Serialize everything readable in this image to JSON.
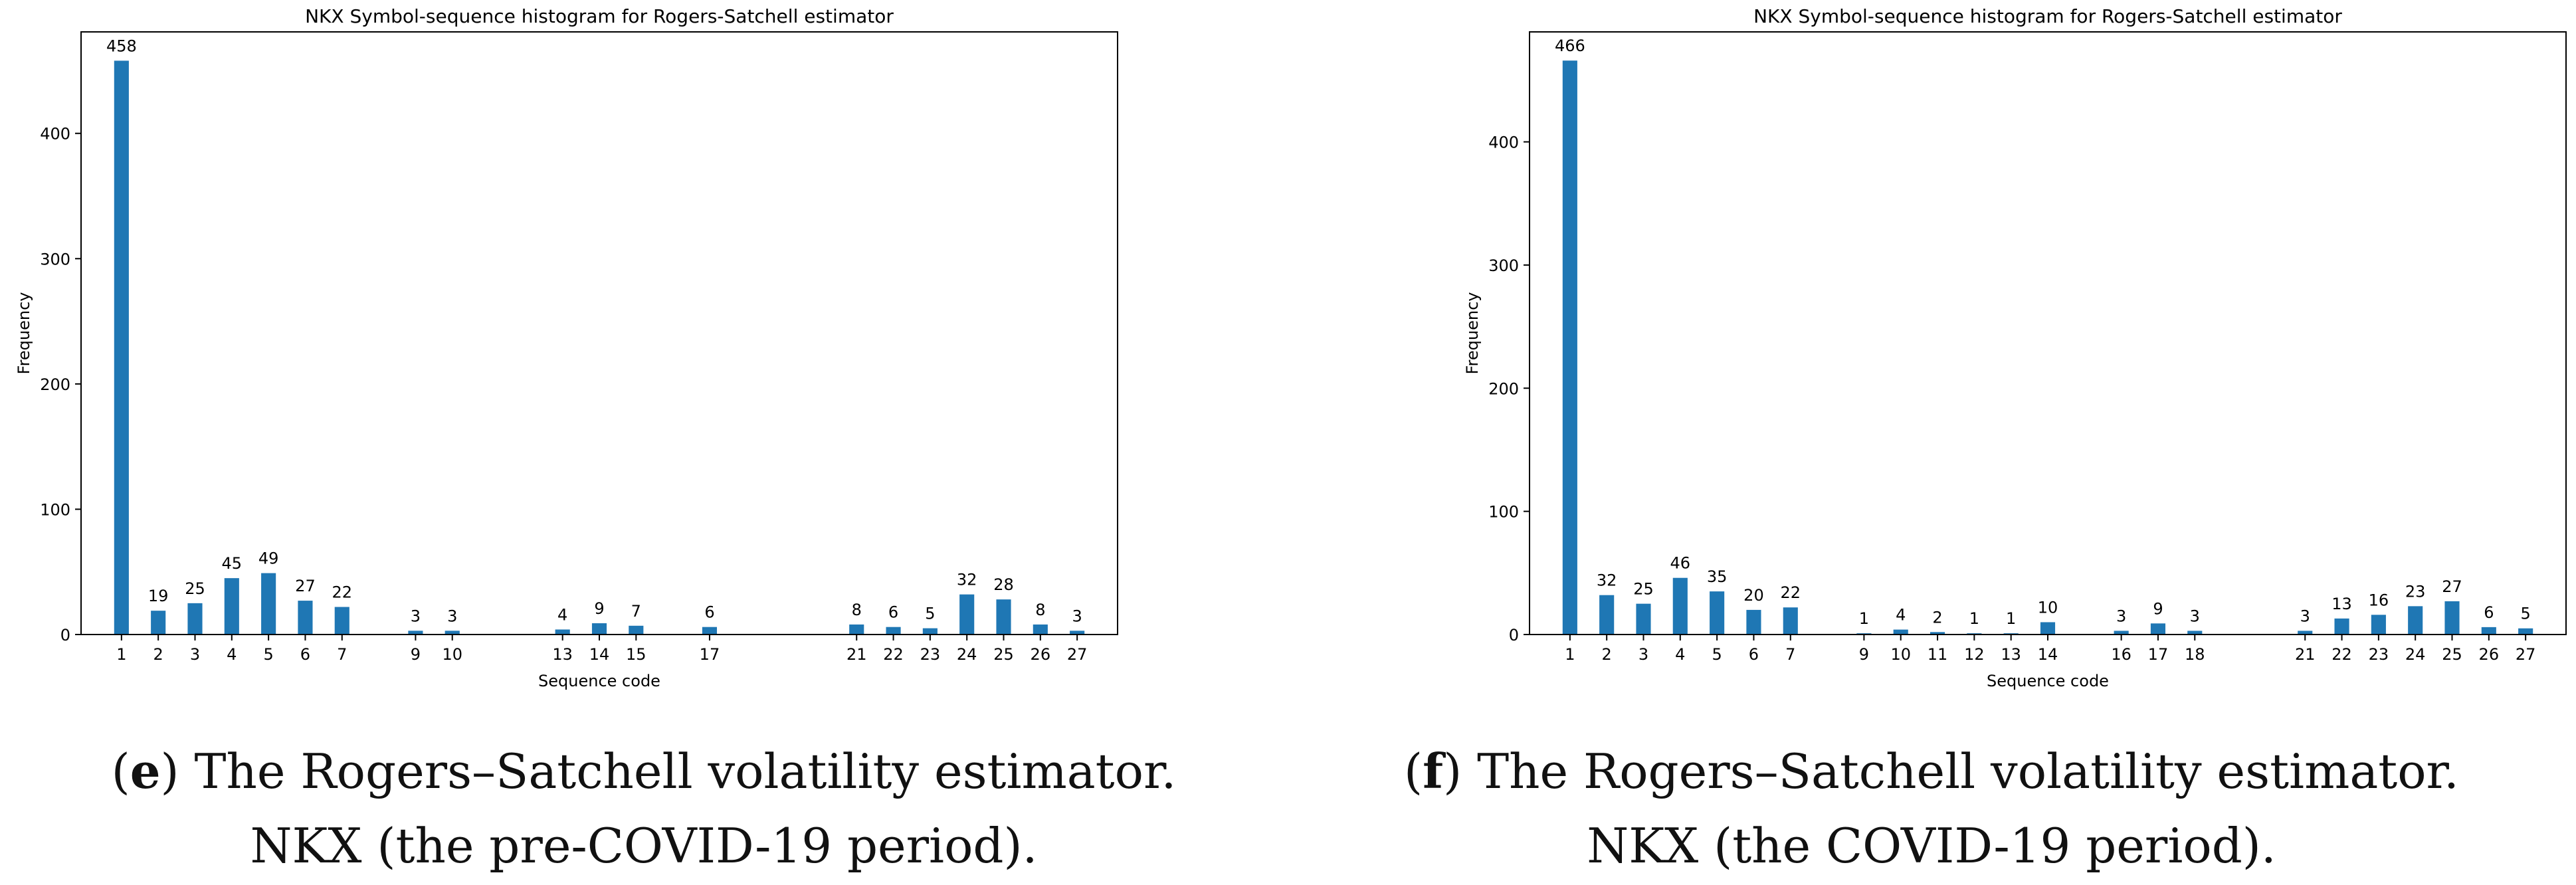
{
  "panels": [
    {
      "id": "e",
      "caption_label": "e",
      "caption_line1": "The Rogers–Satchell volatility estimator.",
      "caption_line2": "NKX (the pre-COVID-19 period)."
    },
    {
      "id": "f",
      "caption_label": "f",
      "caption_line1": "The Rogers–Satchell volatility estimator.",
      "caption_line2": "NKX (the COVID-19 period)."
    }
  ],
  "chart_data": [
    {
      "type": "bar",
      "title": "NKX Symbol-sequence histogram for Rogers-Satchell estimator",
      "xlabel": "Sequence code",
      "ylabel": "Frequency",
      "x": [
        1,
        2,
        3,
        4,
        5,
        6,
        7,
        9,
        10,
        13,
        14,
        15,
        17,
        21,
        22,
        23,
        24,
        25,
        26,
        27
      ],
      "values": [
        458,
        19,
        25,
        45,
        49,
        27,
        22,
        3,
        3,
        4,
        9,
        7,
        6,
        8,
        6,
        5,
        32,
        28,
        8,
        3
      ],
      "yticks": [
        0,
        100,
        200,
        300,
        400
      ],
      "ylim": [
        0,
        481
      ],
      "xlim": [
        -0.1,
        28.1
      ],
      "grid": false,
      "color": "#1f77b4"
    },
    {
      "type": "bar",
      "title": "NKX Symbol-sequence histogram for Rogers-Satchell estimator",
      "xlabel": "Sequence code",
      "ylabel": "Frequency",
      "x": [
        1,
        2,
        3,
        4,
        5,
        6,
        7,
        9,
        10,
        11,
        12,
        13,
        14,
        16,
        17,
        18,
        21,
        22,
        23,
        24,
        25,
        26,
        27
      ],
      "values": [
        466,
        32,
        25,
        46,
        35,
        20,
        22,
        1,
        4,
        2,
        1,
        1,
        10,
        3,
        9,
        3,
        3,
        13,
        16,
        23,
        27,
        6,
        5
      ],
      "yticks": [
        0,
        100,
        200,
        300,
        400
      ],
      "ylim": [
        0,
        489.3
      ],
      "xlim": [
        -0.1,
        28.1
      ],
      "grid": false,
      "color": "#1f77b4"
    }
  ]
}
